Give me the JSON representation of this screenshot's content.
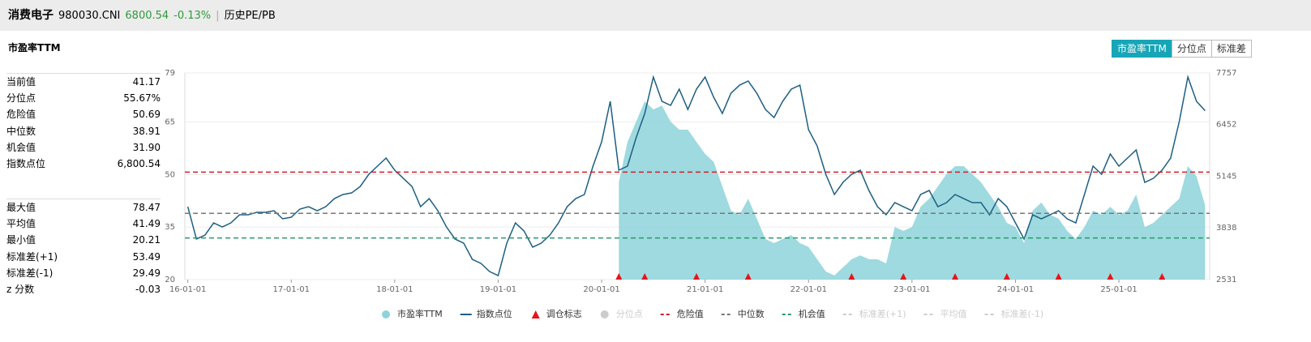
{
  "header": {
    "name": "消费电子",
    "code": "980030.CNI",
    "price": "6800.54",
    "change": "-0.13%",
    "tab": "历史PE/PB"
  },
  "panel_title": "市盈率TTM",
  "buttons": [
    "市盈率TTM",
    "分位点",
    "标准差"
  ],
  "stats": [
    [
      [
        "当前值",
        "41.17"
      ],
      [
        "分位点",
        "55.67%"
      ],
      [
        "危险值",
        "50.69"
      ],
      [
        "中位数",
        "38.91"
      ],
      [
        "机会值",
        "31.90"
      ],
      [
        "指数点位",
        "6,800.54"
      ]
    ],
    [
      [
        "最大值",
        "78.47"
      ],
      [
        "平均值",
        "41.49"
      ],
      [
        "最小值",
        "20.21"
      ],
      [
        "标准差(+1)",
        "53.49"
      ],
      [
        "标准差(-1)",
        "29.49"
      ],
      [
        "z 分数",
        "-0.03"
      ]
    ]
  ],
  "chart_data": {
    "type": "line",
    "xlim": [
      "15-12-21",
      "25-11-17"
    ],
    "xticks": [
      "16-01-01",
      "17-01-01",
      "18-01-01",
      "19-01-01",
      "20-01-01",
      "21-01-01",
      "22-01-01",
      "23-01-01",
      "24-01-01",
      "25-01-01"
    ],
    "ylim": [
      20,
      79
    ],
    "yticks": [
      20,
      35,
      50,
      65,
      79
    ],
    "y2lim": [
      2531,
      7757
    ],
    "y2ticks": [
      2531,
      3838,
      5145,
      6452,
      7757
    ],
    "grid": true,
    "x": [
      "16-01-01",
      "16-02-01",
      "16-03-01",
      "16-04-01",
      "16-05-01",
      "16-06-01",
      "16-07-01",
      "16-08-01",
      "16-09-01",
      "16-10-01",
      "16-11-01",
      "16-12-01",
      "17-01-01",
      "17-02-01",
      "17-03-01",
      "17-04-01",
      "17-05-01",
      "17-06-01",
      "17-07-01",
      "17-08-01",
      "17-09-01",
      "17-10-01",
      "17-11-01",
      "17-12-01",
      "18-01-01",
      "18-02-01",
      "18-03-01",
      "18-04-01",
      "18-05-01",
      "18-06-01",
      "18-07-01",
      "18-08-01",
      "18-09-01",
      "18-10-01",
      "18-11-01",
      "18-12-01",
      "19-01-01",
      "19-02-01",
      "19-03-01",
      "19-04-01",
      "19-05-01",
      "19-06-01",
      "19-07-01",
      "19-08-01",
      "19-09-01",
      "19-10-01",
      "19-11-01",
      "19-12-01",
      "20-01-01",
      "20-02-01",
      "20-03-01",
      "20-04-01",
      "20-05-01",
      "20-06-01",
      "20-07-01",
      "20-08-01",
      "20-09-01",
      "20-10-01",
      "20-11-01",
      "20-12-01",
      "21-01-01",
      "21-02-01",
      "21-03-01",
      "21-04-01",
      "21-05-01",
      "21-06-01",
      "21-07-01",
      "21-08-01",
      "21-09-01",
      "21-10-01",
      "21-11-01",
      "21-12-01",
      "22-01-01",
      "22-02-01",
      "22-03-01",
      "22-04-01",
      "22-05-01",
      "22-06-01",
      "22-07-01",
      "22-08-01",
      "22-09-01",
      "22-10-01",
      "22-11-01",
      "22-12-01",
      "23-01-01",
      "23-02-01",
      "23-03-01",
      "23-04-01",
      "23-05-01",
      "23-06-01",
      "23-07-01",
      "23-08-01",
      "23-09-01",
      "23-10-01",
      "23-11-01",
      "23-12-01",
      "24-01-01",
      "24-02-01",
      "24-03-01",
      "24-04-01",
      "24-05-01",
      "24-06-01",
      "24-07-01",
      "24-08-01",
      "24-09-01",
      "24-10-01",
      "24-11-01",
      "24-12-01",
      "25-01-01",
      "25-02-01",
      "25-03-01",
      "25-04-01",
      "25-05-01",
      "25-06-01",
      "25-07-01",
      "25-08-01",
      "25-09-01",
      "25-10-01",
      "25-11-01"
    ],
    "series": [
      {
        "name": "市盈率TTM",
        "color": "#8dd3d9",
        "values": [
          null,
          null,
          null,
          null,
          null,
          null,
          null,
          null,
          null,
          null,
          null,
          null,
          null,
          null,
          null,
          null,
          null,
          null,
          null,
          null,
          null,
          null,
          null,
          null,
          null,
          null,
          null,
          null,
          null,
          null,
          null,
          null,
          null,
          null,
          null,
          null,
          null,
          null,
          null,
          null,
          null,
          null,
          null,
          null,
          null,
          null,
          null,
          null,
          null,
          null,
          47.8,
          59.3,
          65.1,
          70.9,
          68.6,
          69.7,
          65.1,
          62.8,
          62.8,
          59.3,
          55.9,
          53.6,
          46.6,
          39.7,
          38.5,
          43.1,
          37.4,
          31.6,
          30.4,
          31.6,
          32.7,
          30.4,
          29.3,
          25.8,
          22.3,
          21.2,
          23.5,
          25.8,
          26.9,
          25.8,
          25.8,
          24.6,
          35.0,
          33.9,
          35.0,
          40.8,
          43.1,
          46.6,
          50.1,
          52.4,
          52.4,
          50.1,
          47.8,
          44.3,
          40.8,
          36.2,
          35.0,
          30.4,
          39.7,
          42.0,
          38.5,
          37.4,
          33.9,
          31.6,
          35.0,
          39.7,
          38.5,
          40.8,
          38.5,
          39.7,
          44.3,
          35.0,
          36.2,
          38.5,
          40.8,
          43.1,
          52.4,
          49.5,
          41.17
        ]
      },
      {
        "name": "指数点位",
        "color": "#1d5f82",
        "axis": "y2",
        "values": [
          4375,
          3556,
          3658,
          3965,
          3863,
          3965,
          4170,
          4170,
          4232,
          4232,
          4273,
          4068,
          4109,
          4314,
          4375,
          4273,
          4375,
          4580,
          4683,
          4723,
          4887,
          5195,
          5400,
          5605,
          5297,
          5092,
          4887,
          4375,
          4580,
          4273,
          3863,
          3556,
          3453,
          3043,
          2941,
          2736,
          2633,
          3453,
          3965,
          3760,
          3351,
          3453,
          3658,
          3965,
          4375,
          4580,
          4683,
          5400,
          6014,
          7039,
          5297,
          5400,
          6117,
          6732,
          7654,
          7039,
          6937,
          7347,
          6834,
          7347,
          7654,
          7142,
          6732,
          7244,
          7449,
          7552,
          7244,
          6834,
          6630,
          7039,
          7347,
          7449,
          6322,
          5912,
          5195,
          4683,
          4990,
          5195,
          5297,
          4785,
          4375,
          4170,
          4478,
          4375,
          4273,
          4683,
          4785,
          4375,
          4478,
          4683,
          4580,
          4478,
          4478,
          4170,
          4580,
          4375,
          3965,
          3556,
          4170,
          4068,
          4170,
          4273,
          4068,
          3965,
          4683,
          5400,
          5195,
          5707,
          5400,
          5605,
          5810,
          4990,
          5092,
          5297,
          5605,
          6527,
          7654,
          7039,
          6800.54
        ]
      }
    ],
    "markers": {
      "name": "调仓标志",
      "color": "#e8141b",
      "x": [
        "20-03-01",
        "20-06-01",
        "20-12-01",
        "21-06-01",
        "22-06-01",
        "22-12-01",
        "23-06-01",
        "23-12-01",
        "24-06-01",
        "24-12-01",
        "25-06-01"
      ]
    },
    "hlines": [
      {
        "name": "危险值",
        "value": 50.69,
        "color": "#d0202a"
      },
      {
        "name": "中位数",
        "value": 38.91,
        "color": "#777777"
      },
      {
        "name": "机会值",
        "value": 31.9,
        "color": "#2a9a6a"
      }
    ],
    "legend_inactive": [
      "分位点",
      "标准差(+1)",
      "平均值",
      "标准差(-1)"
    ],
    "inactive_color": "#cccccc"
  }
}
